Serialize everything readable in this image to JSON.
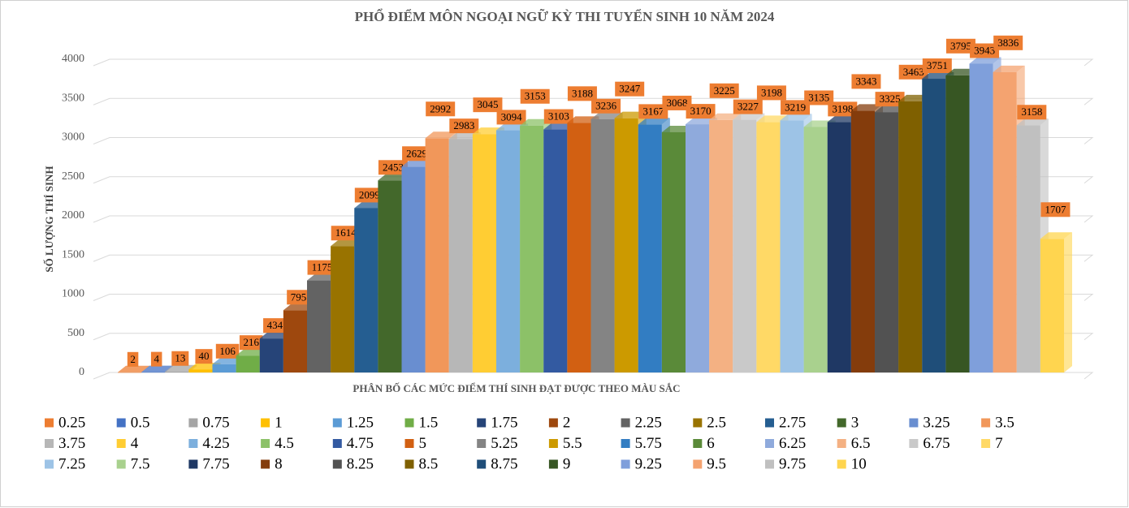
{
  "chart_data": {
    "type": "bar",
    "title": "PHỔ ĐIỂM MÔN NGOẠI NGỮ KỲ THI TUYỂN SINH 10 NĂM 2024",
    "x_label": "PHÂN BỐ CÁC MỨC ĐIỂM THÍ SINH ĐẠT ĐƯỢC THEO MÀU SẮC",
    "y_label": "SỐ LƯỢNG THÍ SINH",
    "ylim": [
      0,
      4000
    ],
    "yticks": [
      0,
      500,
      1000,
      1500,
      2000,
      2500,
      3000,
      3500,
      4000
    ],
    "grid": true,
    "legend": "bottom",
    "series": [
      {
        "name": "0.25",
        "color": "#ED7D31",
        "values": [
          2
        ]
      },
      {
        "name": "0.5",
        "color": "#4472C4",
        "values": [
          4
        ]
      },
      {
        "name": "0.75",
        "color": "#A5A5A5",
        "values": [
          13
        ]
      },
      {
        "name": "1",
        "color": "#FFC000",
        "values": [
          40
        ]
      },
      {
        "name": "1.25",
        "color": "#5B9BD5",
        "values": [
          106
        ]
      },
      {
        "name": "1.5",
        "color": "#70AD47",
        "values": [
          216
        ]
      },
      {
        "name": "1.75",
        "color": "#264478",
        "values": [
          434
        ]
      },
      {
        "name": "2",
        "color": "#9E480E",
        "values": [
          795
        ]
      },
      {
        "name": "2.25",
        "color": "#636363",
        "values": [
          1175
        ]
      },
      {
        "name": "2.5",
        "color": "#997300",
        "values": [
          1614
        ]
      },
      {
        "name": "2.75",
        "color": "#255E91",
        "values": [
          2099
        ]
      },
      {
        "name": "3",
        "color": "#43682B",
        "values": [
          2453
        ]
      },
      {
        "name": "3.25",
        "color": "#698ED0",
        "values": [
          2629
        ]
      },
      {
        "name": "3.5",
        "color": "#F1975A",
        "values": [
          2992
        ]
      },
      {
        "name": "3.75",
        "color": "#B7B7B7",
        "values": [
          2983
        ]
      },
      {
        "name": "4",
        "color": "#FFCD33",
        "values": [
          3045
        ]
      },
      {
        "name": "4.25",
        "color": "#7CAFDD",
        "values": [
          3094
        ]
      },
      {
        "name": "4.5",
        "color": "#8CC168",
        "values": [
          3153
        ]
      },
      {
        "name": "4.75",
        "color": "#335AA1",
        "values": [
          3103
        ]
      },
      {
        "name": "5",
        "color": "#D26012",
        "values": [
          3188
        ]
      },
      {
        "name": "5.25",
        "color": "#848484",
        "values": [
          3236
        ]
      },
      {
        "name": "5.5",
        "color": "#CC9A00",
        "values": [
          3247
        ]
      },
      {
        "name": "5.75",
        "color": "#327DC2",
        "values": [
          3167
        ]
      },
      {
        "name": "6",
        "color": "#5A8A39",
        "values": [
          3068
        ]
      },
      {
        "name": "6.25",
        "color": "#8FAADC",
        "values": [
          3170
        ]
      },
      {
        "name": "6.5",
        "color": "#F4B183",
        "values": [
          3225
        ]
      },
      {
        "name": "6.75",
        "color": "#C9C9C9",
        "values": [
          3227
        ]
      },
      {
        "name": "7",
        "color": "#FFD966",
        "values": [
          3198
        ]
      },
      {
        "name": "7.25",
        "color": "#9DC3E6",
        "values": [
          3219
        ]
      },
      {
        "name": "7.5",
        "color": "#A9D18E",
        "values": [
          3135
        ]
      },
      {
        "name": "7.75",
        "color": "#1F3864",
        "values": [
          3198
        ]
      },
      {
        "name": "8",
        "color": "#843C0C",
        "values": [
          3343
        ]
      },
      {
        "name": "8.25",
        "color": "#525252",
        "values": [
          3325
        ]
      },
      {
        "name": "8.5",
        "color": "#7F6000",
        "values": [
          3463
        ]
      },
      {
        "name": "8.75",
        "color": "#1F4E79",
        "values": [
          3751
        ]
      },
      {
        "name": "9",
        "color": "#375623",
        "values": [
          3795
        ]
      },
      {
        "name": "9.25",
        "color": "#7F9FDB",
        "values": [
          3943
        ]
      },
      {
        "name": "9.5",
        "color": "#F4A370",
        "values": [
          3836
        ]
      },
      {
        "name": "9.75",
        "color": "#C0C0C0",
        "values": [
          3158
        ]
      },
      {
        "name": "10",
        "color": "#FFD54F",
        "values": [
          1707
        ]
      }
    ]
  }
}
